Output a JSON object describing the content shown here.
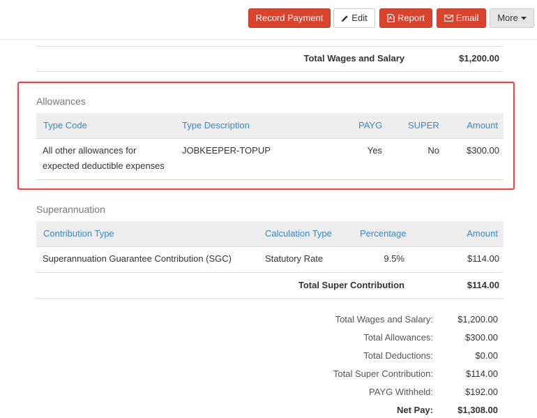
{
  "toolbar": {
    "record_payment": "Record Payment",
    "edit": "Edit",
    "report": "Report",
    "email": "Email",
    "more": "More"
  },
  "wages": {
    "total_label": "Total Wages and Salary",
    "total_value": "$1,200.00"
  },
  "allowances": {
    "title": "Allowances",
    "headers": {
      "type_code": "Type Code",
      "type_description": "Type Description",
      "payg": "PAYG",
      "super": "SUPER",
      "amount": "Amount"
    },
    "rows": [
      {
        "type_code_line1": "All other allowances for",
        "type_code_line2": "expected deductible expenses",
        "type_description": "JOBKEEPER-TOPUP",
        "payg": "Yes",
        "super": "No",
        "amount": "$300.00"
      }
    ]
  },
  "superannuation": {
    "title": "Superannuation",
    "headers": {
      "contribution_type": "Contribution Type",
      "calculation_type": "Calculation Type",
      "percentage": "Percentage",
      "amount": "Amount"
    },
    "rows": [
      {
        "contribution_type": "Superannuation Guarantee Contribution (SGC)",
        "calculation_type": "Statutory Rate",
        "percentage": "9.5%",
        "amount": "$114.00"
      }
    ],
    "total_label": "Total Super Contribution",
    "total_value": "$114.00"
  },
  "summary": [
    {
      "label": "Total Wages and Salary:",
      "value": "$1,200.00"
    },
    {
      "label": "Total Allowances:",
      "value": "$300.00"
    },
    {
      "label": "Total Deductions:",
      "value": "$0.00"
    },
    {
      "label": "Total Super Contribution:",
      "value": "$114.00"
    },
    {
      "label": "PAYG Withheld:",
      "value": "$192.00"
    },
    {
      "label": "Net Pay:",
      "value": "$1,308.00"
    }
  ],
  "colors": {
    "accent_red": "#d9442f",
    "header_link": "#3a87c8",
    "highlight_border": "#e0474c"
  }
}
